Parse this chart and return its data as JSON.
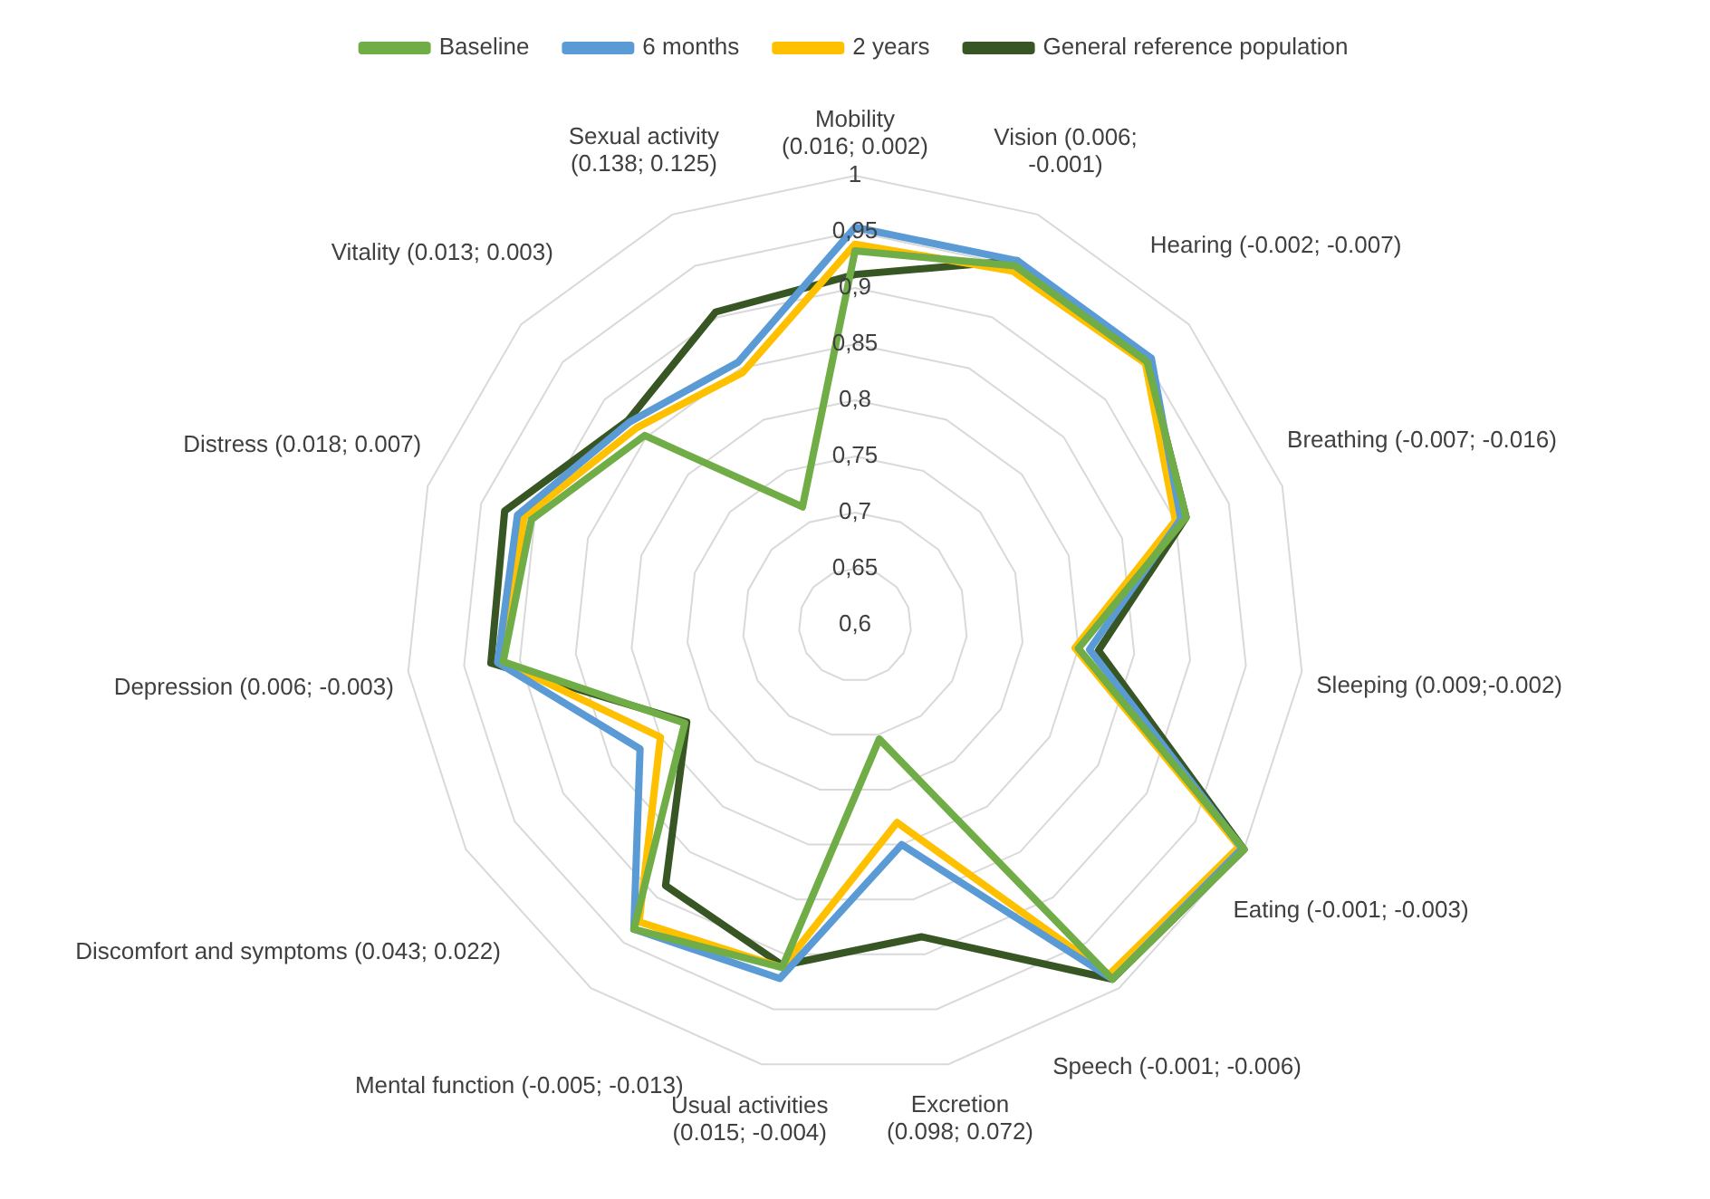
{
  "chart_data": {
    "type": "radar",
    "categories": [
      "Mobility (0.016; 0.002)",
      "Vision (0.006; -0.001)",
      "Hearing (-0.002; -0.007)",
      "Breathing (-0.007; -0.016)",
      "Sleeping (0.009;-0.002)",
      "Eating (-0.001; -0.003)",
      "Speech (-0.001; -0.006)",
      "Excretion (0.098; 0.072)",
      "Usual activities (0.015; -0.004)",
      "Mental function (-0.005; -0.013)",
      "Discomfort and symptoms (0.043; 0.022)",
      "Depression (0.006; -0.003)",
      "Distress (0.018; 0.007)",
      "Vitality (0.013; 0.003)",
      "Sexual activity (0.138; 0.125)"
    ],
    "series": [
      {
        "name": "Baseline",
        "color": "#70ad47",
        "values": [
          0.933,
          0.95,
          0.95,
          0.91,
          0.8,
          1.0,
          0.99,
          0.704,
          0.912,
          0.935,
          0.775,
          0.915,
          0.903,
          0.852,
          0.715
        ]
      },
      {
        "name": "6 months",
        "color": "#5b9bd5",
        "values": [
          0.954,
          0.955,
          0.955,
          0.905,
          0.81,
          0.998,
          0.99,
          0.8,
          0.922,
          0.935,
          0.821,
          0.92,
          0.916,
          0.87,
          0.856
        ]
      },
      {
        "name": "2 years",
        "color": "#ffc000",
        "values": [
          0.939,
          0.945,
          0.948,
          0.9,
          0.797,
          0.995,
          0.985,
          0.78,
          0.912,
          0.927,
          0.8,
          0.915,
          0.91,
          0.862,
          0.846
        ]
      },
      {
        "name": "General reference population",
        "color": "#375623",
        "values": [
          0.912,
          0.955,
          0.95,
          0.91,
          0.818,
          1.0,
          0.99,
          0.884,
          0.91,
          0.887,
          0.773,
          0.926,
          0.928,
          0.872,
          0.905
        ]
      }
    ],
    "ylim": [
      0.6,
      1
    ],
    "yticks": [
      {
        "value": 0.6,
        "label": "0,6"
      },
      {
        "value": 0.65,
        "label": "0,65"
      },
      {
        "value": 0.7,
        "label": "0,7"
      },
      {
        "value": 0.75,
        "label": "0,75"
      },
      {
        "value": 0.8,
        "label": "0,8"
      },
      {
        "value": 0.85,
        "label": "0,85"
      },
      {
        "value": 0.9,
        "label": "0,9"
      },
      {
        "value": 0.95,
        "label": "0,95"
      },
      {
        "value": 1,
        "label": "1"
      }
    ],
    "grid": true,
    "legend": "top",
    "marker": "none",
    "line_style": "solid"
  }
}
